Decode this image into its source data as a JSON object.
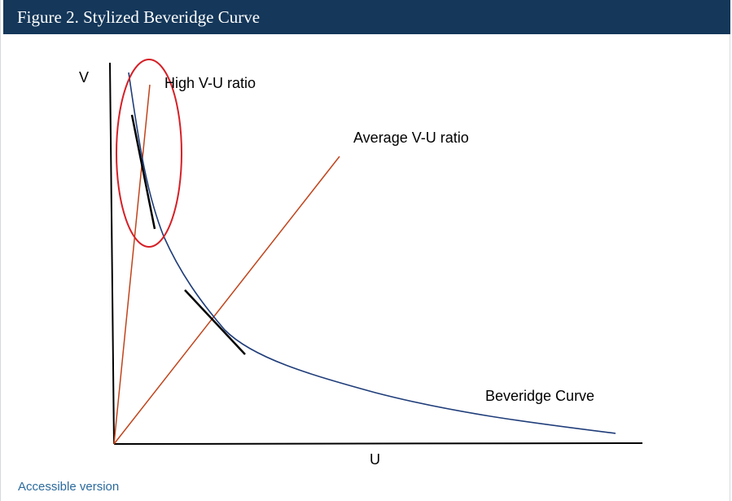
{
  "figure": {
    "title": "Figure 2. Stylized Beveridge Curve",
    "accessible_link": "Accessible version"
  },
  "diagram": {
    "y_axis_label": "V",
    "x_axis_label": "U",
    "labels": {
      "high_ratio": "High V-U ratio",
      "average_ratio": "Average V-U ratio",
      "curve": "Beveridge Curve"
    },
    "colors": {
      "curve": "#1f3d7a",
      "ratio_lines": "#c0441b",
      "highlight_ellipse": "#d61f26",
      "axes": "#000000",
      "tangents": "#000000",
      "title_bar": "#14375a",
      "link": "#2b6a9c"
    }
  }
}
